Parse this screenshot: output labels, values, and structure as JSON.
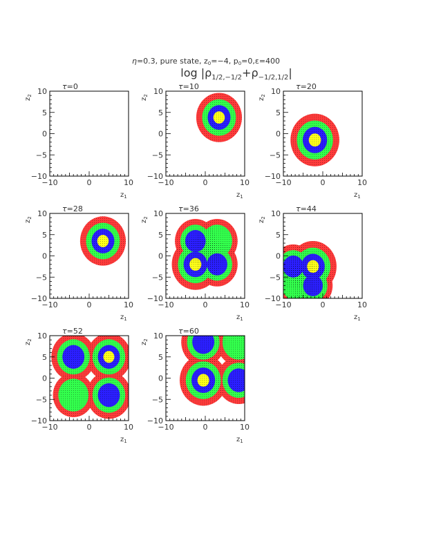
{
  "header": {
    "line1_eta": "η",
    "line1_rest": "=0.3, pure state, z",
    "line1_z0_sub": "0",
    "line1_mid": "=−4, p",
    "line1_p0_sub": "0",
    "line1_end": "=0,ε=400",
    "title_log": "log |ρ",
    "title_sub1": "1/2,−1/2",
    "title_plus": "+ρ",
    "title_sub2": "−1/2,1/2",
    "title_bar": "|"
  },
  "colors": {
    "red": "#ff3b3b",
    "green": "#33ff4d",
    "blue": "#2b1fff",
    "yellow": "#ffff1a",
    "axis": "#000000",
    "text": "#333333"
  },
  "chart_data": {
    "type": "heatmap",
    "xlim": [
      -10,
      10
    ],
    "ylim": [
      -10,
      10
    ],
    "xticks": [
      "−10",
      "0",
      "10"
    ],
    "yticks": [
      "10",
      "5",
      "0",
      "−5",
      "−10"
    ],
    "xlabel_main": "z",
    "xlabel_sub": "1",
    "ylabel_main": "z",
    "ylabel_sub": "2",
    "tau_symbol": "τ",
    "panels": [
      {
        "tau": "=0",
        "blobs": []
      },
      {
        "tau": "=10",
        "blobs": [
          {
            "x": 3.5,
            "y": 3.8,
            "r": 5.8,
            "levels": 4
          }
        ]
      },
      {
        "tau": "=20",
        "blobs": [
          {
            "x": -2.0,
            "y": -1.5,
            "r": 6.2,
            "levels": 4
          }
        ]
      },
      {
        "tau": "=28",
        "blobs": [
          {
            "x": 3.5,
            "y": 3.5,
            "r": 5.8,
            "levels": 4
          }
        ]
      },
      {
        "tau": "=36",
        "blobs": [
          {
            "x": -2.5,
            "y": -2.0,
            "r": 6.0,
            "levels": 4
          },
          {
            "x": -2.5,
            "y": 3.5,
            "r": 5.2,
            "levels": 3
          },
          {
            "x": 3.0,
            "y": 3.5,
            "r": 5.2,
            "levels": 2
          },
          {
            "x": 3.0,
            "y": -2.0,
            "r": 5.2,
            "levels": 3
          }
        ]
      },
      {
        "tau": "=44",
        "blobs": [
          {
            "x": -2.5,
            "y": -2.5,
            "r": 6.0,
            "levels": 4
          },
          {
            "x": -7.5,
            "y": -2.5,
            "r": 5.2,
            "levels": 3
          },
          {
            "x": -2.5,
            "y": -7.0,
            "r": 5.0,
            "levels": 3
          },
          {
            "x": -7.0,
            "y": -7.0,
            "r": 4.6,
            "levels": 2
          }
        ]
      },
      {
        "tau": "=52",
        "blobs": [
          {
            "x": -4.0,
            "y": 5.0,
            "r": 5.6,
            "levels": 3
          },
          {
            "x": 5.0,
            "y": 5.0,
            "r": 5.6,
            "levels": 4
          },
          {
            "x": -4.0,
            "y": -4.0,
            "r": 5.2,
            "levels": 2
          },
          {
            "x": 5.0,
            "y": -4.0,
            "r": 5.6,
            "levels": 3
          }
        ]
      },
      {
        "tau": "=60",
        "blobs": [
          {
            "x": -0.5,
            "y": -0.5,
            "r": 6.0,
            "levels": 4
          },
          {
            "x": -0.5,
            "y": 8.5,
            "r": 5.6,
            "levels": 3
          },
          {
            "x": 8.5,
            "y": 8.5,
            "r": 5.6,
            "levels": 2
          },
          {
            "x": 8.5,
            "y": -0.5,
            "r": 5.6,
            "levels": 3
          }
        ]
      }
    ]
  }
}
